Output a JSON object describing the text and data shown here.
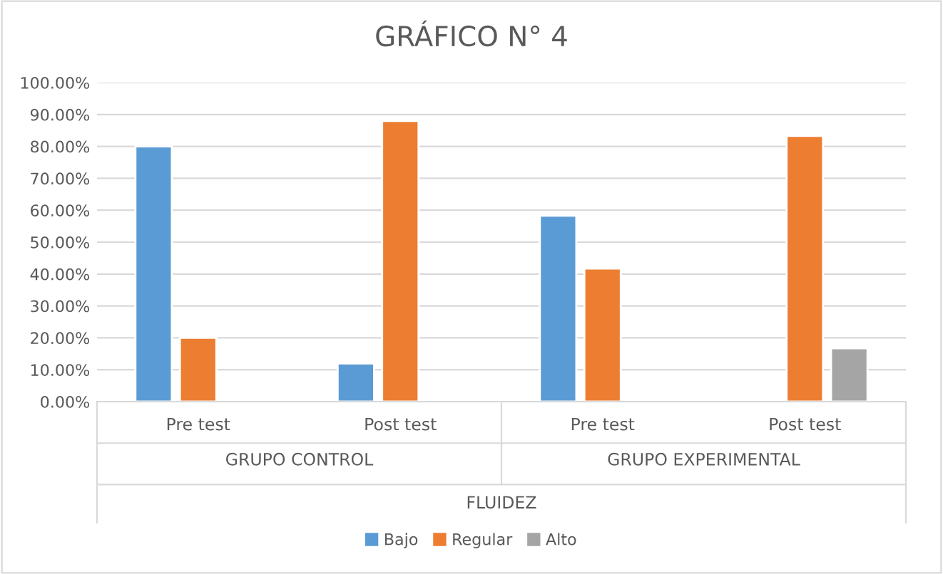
{
  "chart_data": {
    "type": "bar",
    "title": "GRÁFICO N° 4",
    "categories": [
      "Pre test",
      "Post test",
      "Pre test",
      "Post test"
    ],
    "xlabel": "FLUIDEZ",
    "annotations": [
      "GRUPO CONTROL",
      "GRUPO EXPERIMENTAL"
    ],
    "series": [
      {
        "name": "Bajo",
        "color": "#5b9bd5",
        "values": [
          80,
          12,
          58.3,
          null
        ]
      },
      {
        "name": "Regular",
        "color": "#ed7d31",
        "values": [
          20,
          88,
          41.7,
          83.3
        ]
      },
      {
        "name": "Alto",
        "color": "#a5a5a5",
        "values": [
          null,
          null,
          null,
          16.7
        ]
      }
    ],
    "ylim": [
      0,
      100
    ],
    "yticks": [
      {
        "value": 0,
        "label": "0.00%"
      },
      {
        "value": 10,
        "label": "10.00%"
      },
      {
        "value": 20,
        "label": "20.00%"
      },
      {
        "value": 30,
        "label": "30.00%"
      },
      {
        "value": 40,
        "label": "40.00%"
      },
      {
        "value": 50,
        "label": "50.00%"
      },
      {
        "value": 60,
        "label": "60.00%"
      },
      {
        "value": 70,
        "label": "70.00%"
      },
      {
        "value": 80,
        "label": "80.00%"
      },
      {
        "value": 90,
        "label": "90.00%"
      },
      {
        "value": 100,
        "label": "100.00%"
      }
    ],
    "grid": "y",
    "legend": "bottom"
  }
}
